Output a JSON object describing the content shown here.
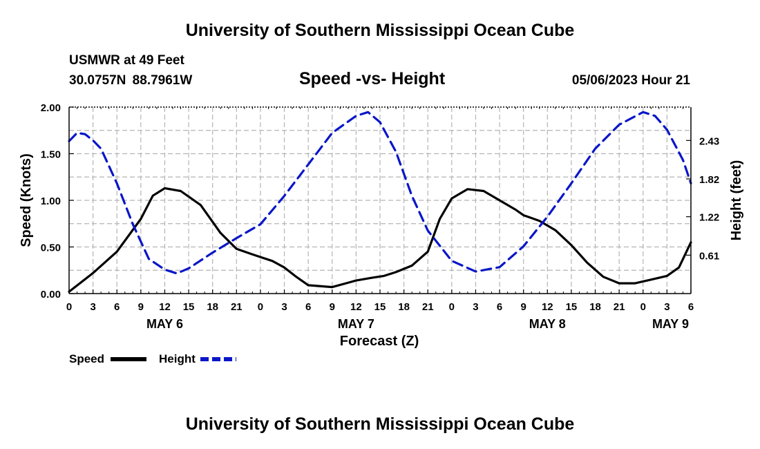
{
  "header": {
    "title": "University of Southern Mississippi Ocean Cube",
    "station": "USMWR at 49 Feet",
    "coords": "30.0757N  88.7961W",
    "plot_title": "Speed -vs- Height",
    "timestamp": "05/06/2023 Hour 21"
  },
  "footer": {
    "title": "University of Southern Mississippi Ocean Cube"
  },
  "legend": {
    "speed_label": "Speed",
    "height_label": "Height"
  },
  "colors": {
    "speed": "#000000",
    "height": "#0a16c8",
    "grid": "#b4b4b4"
  },
  "chart_data": {
    "type": "line",
    "title": "Speed -vs- Height",
    "xlabel": "Forecast (Z)",
    "ylabel": "Speed (Knots)",
    "y2label": "Height (feet)",
    "grid": true,
    "legend_position": "bottom-left",
    "xlim": [
      0,
      78
    ],
    "ylim": [
      0,
      2.0
    ],
    "y2lim": [
      0,
      2.96
    ],
    "x_ticks": [
      0,
      3,
      6,
      9,
      12,
      15,
      18,
      21,
      24,
      27,
      30,
      33,
      36,
      39,
      42,
      45,
      48,
      51,
      54,
      57,
      60,
      63,
      66,
      69,
      72,
      75,
      78
    ],
    "x_tick_labels": [
      "0",
      "3",
      "6",
      "9",
      "12",
      "15",
      "18",
      "21",
      "0",
      "3",
      "6",
      "9",
      "12",
      "15",
      "18",
      "21",
      "0",
      "3",
      "6",
      "9",
      "12",
      "15",
      "18",
      "21",
      "0",
      "3",
      "6"
    ],
    "date_labels": [
      {
        "x": 12,
        "label": "MAY 6"
      },
      {
        "x": 36,
        "label": "MAY 7"
      },
      {
        "x": 60,
        "label": "MAY 8"
      },
      {
        "x": 77,
        "label": "MAY 9"
      }
    ],
    "y_ticks": [
      0,
      0.5,
      1.0,
      1.5,
      2.0
    ],
    "y_tick_labels": [
      "0.00",
      "0.50",
      "1.00",
      "1.50",
      "2.00"
    ],
    "y2_ticks": [
      0.61,
      1.22,
      1.82,
      2.43
    ],
    "y2_tick_labels": [
      "0.61",
      "1.22",
      "1.82",
      "2.43"
    ],
    "series": [
      {
        "name": "Speed",
        "axis": "left",
        "style": "solid",
        "x": [
          0,
          3,
          6,
          9,
          10.5,
          12,
          14,
          16.5,
          19,
          21,
          23,
          25.5,
          27,
          28.5,
          30,
          33,
          36,
          38,
          39.5,
          41,
          43,
          45,
          46.5,
          48,
          50,
          52,
          54,
          56,
          57,
          59,
          61,
          63,
          65,
          67,
          69,
          71,
          73,
          75,
          76.5,
          78
        ],
        "y": [
          0.02,
          0.22,
          0.45,
          0.8,
          1.05,
          1.13,
          1.1,
          0.95,
          0.65,
          0.48,
          0.42,
          0.35,
          0.28,
          0.18,
          0.09,
          0.07,
          0.14,
          0.17,
          0.19,
          0.23,
          0.3,
          0.45,
          0.8,
          1.02,
          1.12,
          1.1,
          1.0,
          0.9,
          0.84,
          0.78,
          0.68,
          0.52,
          0.33,
          0.18,
          0.11,
          0.11,
          0.15,
          0.19,
          0.28,
          0.55
        ]
      },
      {
        "name": "Height",
        "axis": "right",
        "style": "dashed",
        "x": [
          0,
          1,
          2,
          3,
          4,
          6,
          8,
          10,
          12,
          13.5,
          15,
          18,
          21,
          24,
          27,
          30,
          33,
          36,
          37.5,
          39,
          41,
          43,
          45,
          48,
          51,
          54,
          57,
          60,
          63,
          66,
          69,
          72,
          73.5,
          75,
          77,
          78
        ],
        "y": [
          2.42,
          2.55,
          2.53,
          2.43,
          2.3,
          1.75,
          1.1,
          0.55,
          0.38,
          0.32,
          0.4,
          0.65,
          0.88,
          1.1,
          1.55,
          2.05,
          2.55,
          2.82,
          2.88,
          2.72,
          2.25,
          1.55,
          1.0,
          0.52,
          0.35,
          0.42,
          0.75,
          1.22,
          1.75,
          2.3,
          2.68,
          2.88,
          2.82,
          2.6,
          2.12,
          1.75
        ]
      }
    ]
  }
}
